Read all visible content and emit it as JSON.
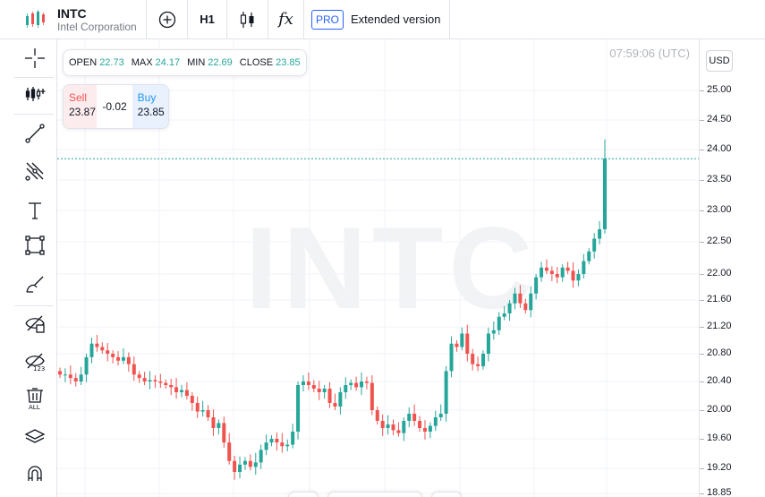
{
  "header": {
    "symbol": "INTC",
    "company": "Intel Corporation",
    "interval": "H1",
    "fx_label": "fx",
    "pro_badge": "PRO",
    "extended_label": "Extended version"
  },
  "legend": {
    "open_label": "OPEN",
    "open": "22.73",
    "max_label": "MAX",
    "max": "24.17",
    "min_label": "MIN",
    "min": "22.69",
    "close_label": "CLOSE",
    "close": "23.85"
  },
  "trade": {
    "sell_label": "Sell",
    "sell_price": "23.87",
    "spread": "-0.02",
    "buy_label": "Buy",
    "buy_price": "23.85"
  },
  "chart": {
    "clock": "07:59:06 (UTC)",
    "watermark": "INTC",
    "currency": "USD",
    "up_color": "#26a69a",
    "down_color": "#ef5350"
  },
  "tools": [
    "crosshair-icon",
    "indicators-icon",
    "trend-line-icon",
    "fib-icon",
    "text-icon",
    "rectangle-icon",
    "brush-icon",
    "hide-drawings-icon",
    "hide-indicators-icon",
    "remove-all-icon",
    "layers-icon",
    "magnet-icon"
  ],
  "chart_data": {
    "type": "candlestick",
    "y_ticks": [
      "25.00",
      "24.50",
      "24.00",
      "23.50",
      "23.00",
      "22.50",
      "22.00",
      "21.60",
      "21.20",
      "20.80",
      "20.40",
      "20.00",
      "19.60",
      "19.20",
      "18.85"
    ],
    "tick_values": [
      25.0,
      24.5,
      24.0,
      23.5,
      23.0,
      22.5,
      22.0,
      21.6,
      21.2,
      20.8,
      20.4,
      20.0,
      19.6,
      19.2,
      18.85
    ],
    "last_price": 23.85
  }
}
